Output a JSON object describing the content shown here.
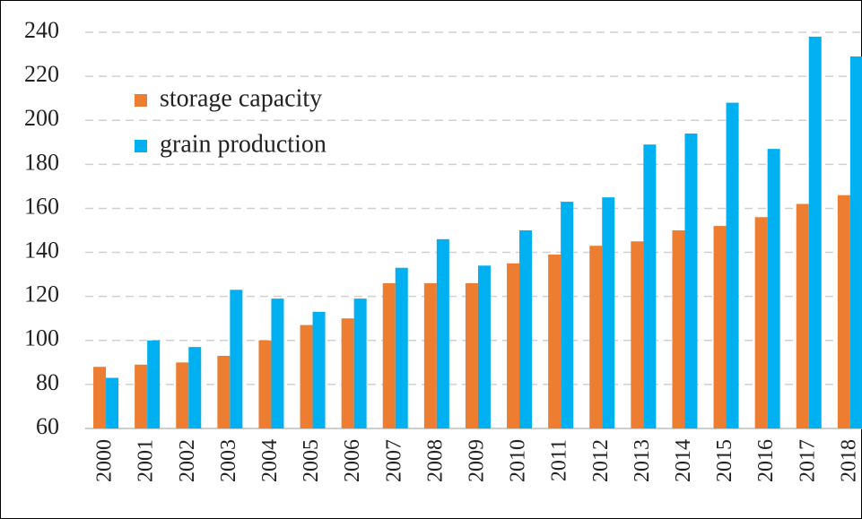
{
  "chart_data": {
    "type": "bar",
    "categories": [
      "2000",
      "2001",
      "2002",
      "2003",
      "2004",
      "2005",
      "2006",
      "2007",
      "2008",
      "2009",
      "2010",
      "2011",
      "2012",
      "2013",
      "2014",
      "2015",
      "2016",
      "2017",
      "2018"
    ],
    "series": [
      {
        "name": "storage capacity",
        "color": "#ed7d31",
        "values": [
          88,
          89,
          90,
          93,
          100,
          107,
          110,
          126,
          126,
          126,
          135,
          139,
          143,
          145,
          150,
          152,
          156,
          162,
          166
        ]
      },
      {
        "name": "grain production",
        "color": "#00b0f0",
        "values": [
          83,
          100,
          97,
          123,
          119,
          113,
          119,
          133,
          146,
          134,
          150,
          163,
          165,
          189,
          194,
          208,
          187,
          238,
          229
        ]
      }
    ],
    "ylim": [
      60,
      240
    ],
    "yticks": [
      60,
      80,
      100,
      120,
      140,
      160,
      180,
      200,
      220,
      240
    ],
    "grid": true,
    "legend": "upper left"
  }
}
